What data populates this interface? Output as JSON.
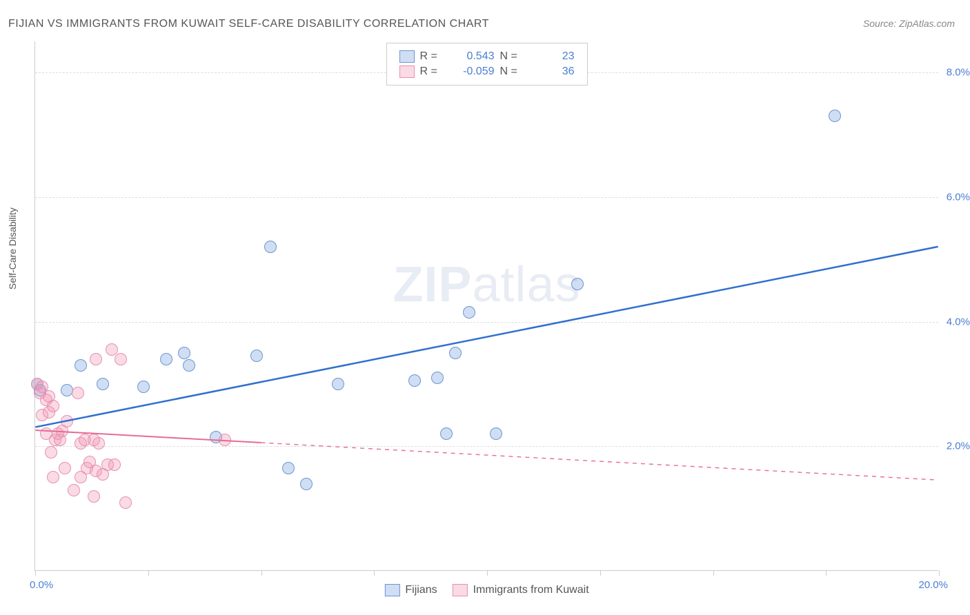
{
  "title": "FIJIAN VS IMMIGRANTS FROM KUWAIT SELF-CARE DISABILITY CORRELATION CHART",
  "source": "Source: ZipAtlas.com",
  "y_axis_label": "Self-Care Disability",
  "watermark": {
    "part1": "ZIP",
    "part2": "atlas"
  },
  "chart": {
    "type": "scatter",
    "xlim": [
      0,
      20
    ],
    "ylim": [
      0,
      8.5
    ],
    "x_ticks": [
      0,
      2.5,
      5,
      7.5,
      10,
      12.5,
      15,
      17.5,
      20
    ],
    "x_tick_labels": {
      "0": "0.0%",
      "20": "20.0%"
    },
    "y_gridlines": [
      2,
      4,
      6,
      8
    ],
    "y_tick_labels": {
      "2": "2.0%",
      "4": "4.0%",
      "6": "6.0%",
      "8": "8.0%"
    },
    "background_color": "#ffffff",
    "grid_color": "#dddddd",
    "axis_label_color": "#4a7dd4",
    "marker_radius": 9,
    "marker_stroke_width": 1.2
  },
  "series": [
    {
      "name": "Fijians",
      "color_fill": "rgba(120,160,220,0.35)",
      "color_stroke": "#6a95cf",
      "trend": {
        "x1": 0,
        "y1": 2.3,
        "x2": 20,
        "y2": 5.2,
        "color": "#2f6fd0",
        "width": 2.5,
        "dash": "none"
      },
      "R": "0.543",
      "N": "23",
      "points": [
        [
          0.05,
          3.0
        ],
        [
          0.1,
          2.9
        ],
        [
          0.7,
          2.9
        ],
        [
          1.0,
          3.3
        ],
        [
          1.5,
          3.0
        ],
        [
          2.4,
          2.95
        ],
        [
          2.9,
          3.4
        ],
        [
          3.3,
          3.5
        ],
        [
          3.4,
          3.3
        ],
        [
          4.0,
          2.15
        ],
        [
          4.9,
          3.45
        ],
        [
          5.2,
          5.2
        ],
        [
          5.6,
          1.65
        ],
        [
          6.0,
          1.4
        ],
        [
          6.7,
          3.0
        ],
        [
          8.4,
          3.05
        ],
        [
          8.9,
          3.1
        ],
        [
          9.1,
          2.2
        ],
        [
          9.3,
          3.5
        ],
        [
          9.6,
          4.15
        ],
        [
          10.2,
          2.2
        ],
        [
          12.0,
          4.6
        ],
        [
          17.7,
          7.3
        ]
      ]
    },
    {
      "name": "Immigrants from Kuwait",
      "color_fill": "rgba(240,150,180,0.35)",
      "color_stroke": "#e690ac",
      "trend": {
        "x1": 0,
        "y1": 2.25,
        "x2": 20,
        "y2": 1.45,
        "color": "#e86a92",
        "width": 2,
        "dash": "solid_then_dashed",
        "solid_until_x": 5
      },
      "R": "-0.059",
      "N": "36",
      "points": [
        [
          0.05,
          3.0
        ],
        [
          0.1,
          2.85
        ],
        [
          0.15,
          2.5
        ],
        [
          0.15,
          2.95
        ],
        [
          0.25,
          2.2
        ],
        [
          0.25,
          2.75
        ],
        [
          0.3,
          2.55
        ],
        [
          0.3,
          2.8
        ],
        [
          0.35,
          1.9
        ],
        [
          0.4,
          1.5
        ],
        [
          0.4,
          2.65
        ],
        [
          0.45,
          2.1
        ],
        [
          0.5,
          2.2
        ],
        [
          0.55,
          2.1
        ],
        [
          0.6,
          2.25
        ],
        [
          0.65,
          1.65
        ],
        [
          0.7,
          2.4
        ],
        [
          0.85,
          1.3
        ],
        [
          0.95,
          2.85
        ],
        [
          1.0,
          1.5
        ],
        [
          1.0,
          2.05
        ],
        [
          1.1,
          2.1
        ],
        [
          1.15,
          1.65
        ],
        [
          1.2,
          1.75
        ],
        [
          1.3,
          1.2
        ],
        [
          1.3,
          2.1
        ],
        [
          1.35,
          1.6
        ],
        [
          1.35,
          3.4
        ],
        [
          1.4,
          2.05
        ],
        [
          1.5,
          1.55
        ],
        [
          1.6,
          1.7
        ],
        [
          1.7,
          3.55
        ],
        [
          1.75,
          1.7
        ],
        [
          1.9,
          3.4
        ],
        [
          2.0,
          1.1
        ],
        [
          4.2,
          2.1
        ]
      ]
    }
  ],
  "legend_top": {
    "R_label": "R =",
    "N_label": "N ="
  },
  "legend_bottom_series": [
    "Fijians",
    "Immigrants from Kuwait"
  ]
}
